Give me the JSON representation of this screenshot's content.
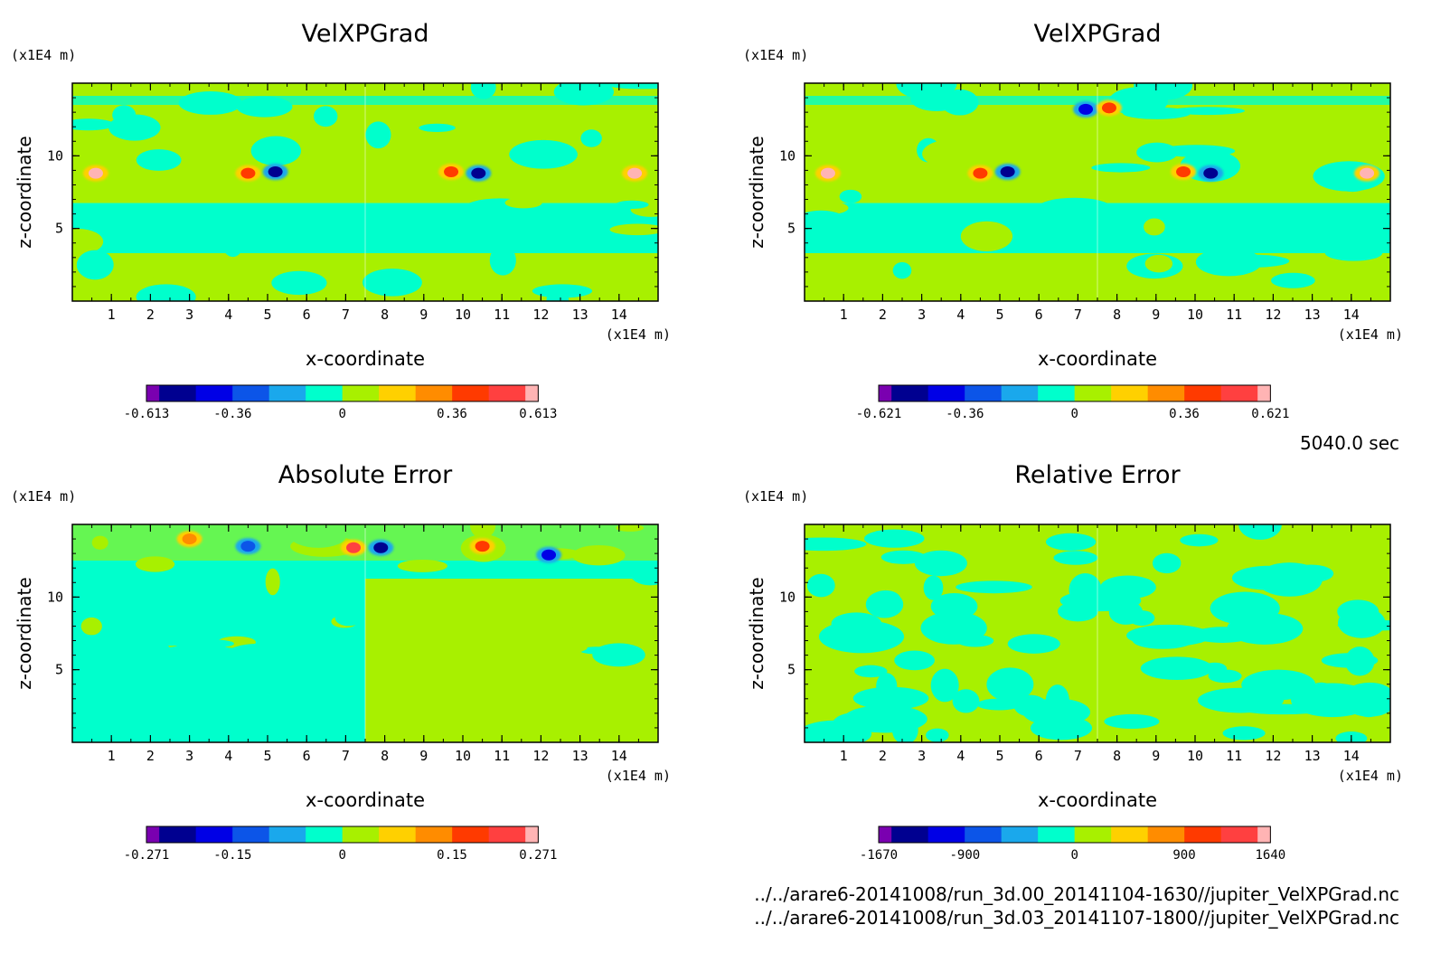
{
  "time_label": "5040.0 sec",
  "file_paths": [
    "../../arare6-20141008/run_3d.00_20141104-1630//jupiter_VelXPGrad.nc",
    "../../arare6-20141008/run_3d.03_20141107-1800//jupiter_VelXPGrad.nc"
  ],
  "colors": {
    "colorbar_scale": [
      "#7a00b0",
      "#000090",
      "#0000e6",
      "#0c55e8",
      "#1aa8ec",
      "#00ffcc",
      "#a8f000",
      "#ffd000",
      "#ff8c00",
      "#ff3a00",
      "#ff4040",
      "#ffb4b4"
    ],
    "field_background_top": "#a8f000",
    "field_background_bottom": "#00ffcc"
  },
  "chart_data": [
    {
      "type": "heatmap",
      "title": "VelXPGrad",
      "xlabel": "x-coordinate",
      "ylabel": "z-coordinate",
      "x_unit": "(x1E4 m)",
      "y_unit": "(x1E4 m)",
      "xlim": [
        0,
        15
      ],
      "ylim": [
        0,
        15
      ],
      "x_ticks": [
        1,
        2,
        3,
        4,
        5,
        6,
        7,
        8,
        9,
        10,
        11,
        12,
        13,
        14
      ],
      "y_ticks": [
        5,
        10
      ],
      "colorbar": {
        "min": -0.613,
        "max": 0.613,
        "labels": [
          "-0.613",
          "-0.36",
          "0",
          "0.36",
          "0.613"
        ]
      },
      "features": [
        {
          "x": 0.6,
          "z": 8.8,
          "value": 0.55
        },
        {
          "x": 4.5,
          "z": 8.8,
          "value": 0.4
        },
        {
          "x": 5.2,
          "z": 8.9,
          "value": -0.45
        },
        {
          "x": 9.7,
          "z": 8.9,
          "value": 0.4
        },
        {
          "x": 10.4,
          "z": 8.8,
          "value": -0.45
        },
        {
          "x": 14.4,
          "z": 8.8,
          "value": 0.55
        }
      ]
    },
    {
      "type": "heatmap",
      "title": "VelXPGrad",
      "xlabel": "x-coordinate",
      "ylabel": "z-coordinate",
      "x_unit": "(x1E4 m)",
      "y_unit": "(x1E4 m)",
      "xlim": [
        0,
        15
      ],
      "ylim": [
        0,
        15
      ],
      "x_ticks": [
        1,
        2,
        3,
        4,
        5,
        6,
        7,
        8,
        9,
        10,
        11,
        12,
        13,
        14
      ],
      "y_ticks": [
        5,
        10
      ],
      "colorbar": {
        "min": -0.621,
        "max": 0.621,
        "labels": [
          "-0.621",
          "-0.36",
          "0",
          "0.36",
          "0.621"
        ]
      },
      "features": [
        {
          "x": 0.6,
          "z": 8.8,
          "value": 0.55
        },
        {
          "x": 4.5,
          "z": 8.8,
          "value": 0.4
        },
        {
          "x": 5.2,
          "z": 8.9,
          "value": -0.45
        },
        {
          "x": 7.2,
          "z": 13.2,
          "value": -0.4
        },
        {
          "x": 7.8,
          "z": 13.3,
          "value": 0.4
        },
        {
          "x": 9.7,
          "z": 8.9,
          "value": 0.4
        },
        {
          "x": 10.4,
          "z": 8.8,
          "value": -0.45
        },
        {
          "x": 14.4,
          "z": 8.8,
          "value": 0.55
        }
      ]
    },
    {
      "type": "heatmap",
      "title": "Absolute Error",
      "xlabel": "x-coordinate",
      "ylabel": "z-coordinate",
      "x_unit": "(x1E4 m)",
      "y_unit": "(x1E4 m)",
      "xlim": [
        0,
        15
      ],
      "ylim": [
        0,
        15
      ],
      "x_ticks": [
        1,
        2,
        3,
        4,
        5,
        6,
        7,
        8,
        9,
        10,
        11,
        12,
        13,
        14
      ],
      "y_ticks": [
        5,
        10
      ],
      "colorbar": {
        "min": -0.271,
        "max": 0.271,
        "labels": [
          "-0.271",
          "-0.15",
          "0",
          "0.15",
          "0.271"
        ]
      },
      "features": [
        {
          "x": 3.0,
          "z": 14.0,
          "value": 0.12
        },
        {
          "x": 4.5,
          "z": 13.5,
          "value": -0.12
        },
        {
          "x": 7.2,
          "z": 13.4,
          "value": 0.22
        },
        {
          "x": 7.9,
          "z": 13.4,
          "value": -0.22
        },
        {
          "x": 10.5,
          "z": 13.5,
          "value": 0.15
        },
        {
          "x": 12.2,
          "z": 12.9,
          "value": -0.15
        }
      ]
    },
    {
      "type": "heatmap",
      "title": "Relative Error",
      "xlabel": "x-coordinate",
      "ylabel": "z-coordinate",
      "x_unit": "(x1E4 m)",
      "y_unit": "(x1E4 m)",
      "xlim": [
        0,
        15
      ],
      "ylim": [
        0,
        15
      ],
      "x_ticks": [
        1,
        2,
        3,
        4,
        5,
        6,
        7,
        8,
        9,
        10,
        11,
        12,
        13,
        14
      ],
      "y_ticks": [
        5,
        10
      ],
      "colorbar": {
        "min": -1670,
        "max": 1640,
        "labels": [
          "-1670",
          "-900",
          "0",
          "900",
          "1640"
        ]
      },
      "features": []
    }
  ]
}
